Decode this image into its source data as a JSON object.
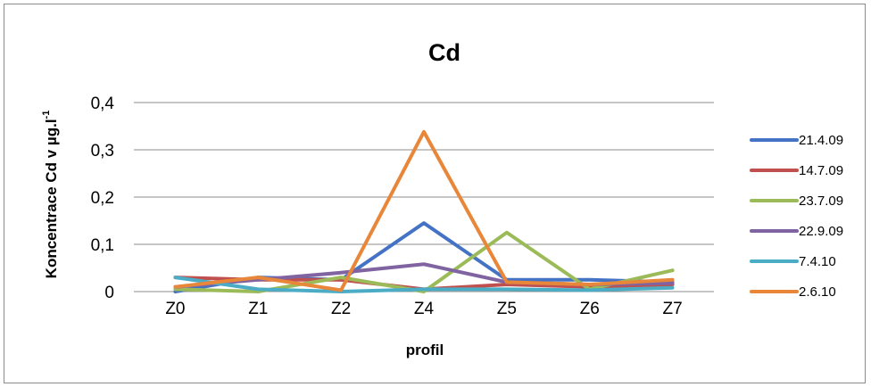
{
  "chart_data": {
    "type": "line",
    "title": "Cd",
    "xlabel": "profil",
    "ylabel": "Koncentrace Cd v µg.l",
    "ylabel_superscript": "-1",
    "categories": [
      "Z0",
      "Z1",
      "Z2",
      "Z4",
      "Z5",
      "Z6",
      "Z7"
    ],
    "ylim": [
      0,
      0.4
    ],
    "yticks": [
      0,
      0.1,
      0.2,
      0.3,
      0.4
    ],
    "ytick_labels": [
      "0",
      "0,1",
      "0,2",
      "0,3",
      "0,4"
    ],
    "grid": "horizontal",
    "legend_position": "right",
    "series": [
      {
        "name": "21.4.09",
        "color": "#4472C4",
        "values": [
          0.0,
          0.03,
          0.025,
          0.145,
          0.025,
          0.025,
          0.02
        ]
      },
      {
        "name": "14.7.09",
        "color": "#C0504D",
        "values": [
          0.03,
          0.025,
          0.025,
          0.005,
          0.015,
          0.01,
          0.015
        ]
      },
      {
        "name": "23.7.09",
        "color": "#9BBB59",
        "values": [
          0.005,
          0.0,
          0.03,
          0.0,
          0.125,
          0.005,
          0.045
        ]
      },
      {
        "name": "22.9.09",
        "color": "#8064A2",
        "values": [
          0.01,
          0.025,
          0.04,
          0.058,
          0.02,
          0.015,
          0.018
        ]
      },
      {
        "name": "7.4.10",
        "color": "#4BACC6",
        "values": [
          0.03,
          0.005,
          0.0,
          0.005,
          0.005,
          0.003,
          0.008
        ]
      },
      {
        "name": "2.6.10",
        "color": "#E8873A",
        "values": [
          0.01,
          0.03,
          0.003,
          0.338,
          0.02,
          0.015,
          0.025
        ]
      }
    ]
  }
}
